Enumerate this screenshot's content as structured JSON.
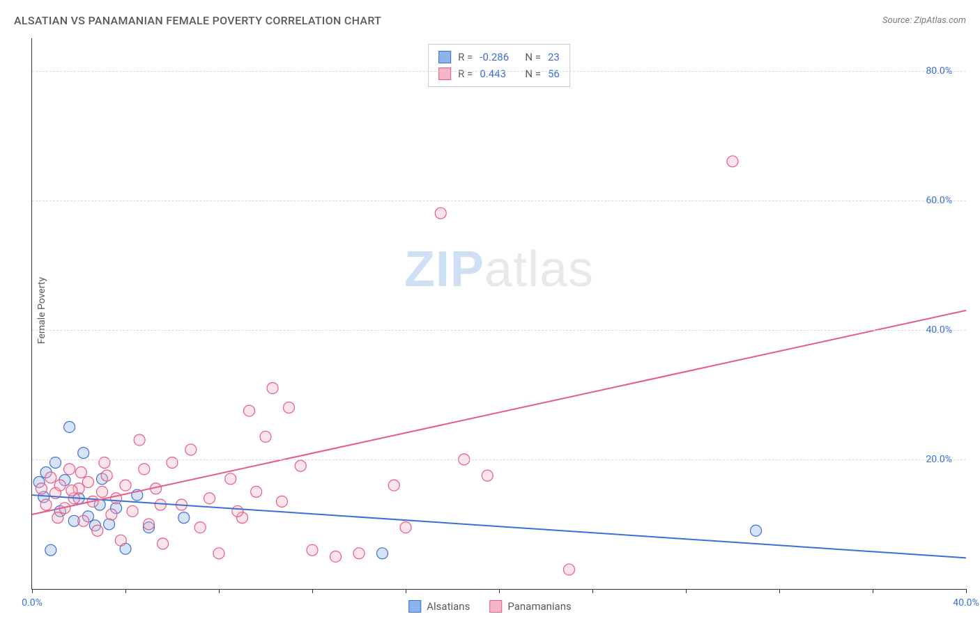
{
  "title": "ALSATIAN VS PANAMANIAN FEMALE POVERTY CORRELATION CHART",
  "source": "Source: ZipAtlas.com",
  "y_axis_label": "Female Poverty",
  "watermark_bold": "ZIP",
  "watermark_rest": "atlas",
  "chart": {
    "type": "scatter",
    "background_color": "#ffffff",
    "grid_color": "#d8d8d8",
    "axis_color": "#333333",
    "label_color": "#5a5a5a",
    "tick_color": "#3b6fd6",
    "title_fontsize": 16,
    "label_fontsize": 14,
    "xlim": [
      0,
      40
    ],
    "ylim": [
      0,
      85
    ],
    "x_ticks": [
      0,
      4,
      8,
      12,
      16,
      20,
      24,
      28,
      32,
      36,
      40
    ],
    "x_tick_labels": {
      "0": "0.0%",
      "40": "40.0%"
    },
    "y_ticks": [
      20,
      40,
      60,
      80
    ],
    "y_tick_labels": {
      "20": "20.0%",
      "40": "40.0%",
      "60": "60.0%",
      "80": "80.0%"
    },
    "marker_radius": 8,
    "marker_fill_opacity": 0.35,
    "marker_stroke_width": 1.2,
    "line_width": 2,
    "series": [
      {
        "name": "Alsatians",
        "color_fill": "#8cb3ec",
        "color_stroke": "#3b6fd6",
        "R": "-0.286",
        "N": "23",
        "trend": {
          "x1": 0,
          "y1": 14.5,
          "x2": 40,
          "y2": 4.8
        },
        "points": [
          [
            0.3,
            16.5
          ],
          [
            0.5,
            14.2
          ],
          [
            0.6,
            18.0
          ],
          [
            0.8,
            6.0
          ],
          [
            1.0,
            19.5
          ],
          [
            1.2,
            12.0
          ],
          [
            1.4,
            16.8
          ],
          [
            1.6,
            25.0
          ],
          [
            1.8,
            10.5
          ],
          [
            2.0,
            14.0
          ],
          [
            2.2,
            21.0
          ],
          [
            2.4,
            11.2
          ],
          [
            2.7,
            9.8
          ],
          [
            3.0,
            17.0
          ],
          [
            3.3,
            10.0
          ],
          [
            3.6,
            12.5
          ],
          [
            4.0,
            6.2
          ],
          [
            4.5,
            14.5
          ],
          [
            5.0,
            9.5
          ],
          [
            6.5,
            11.0
          ],
          [
            15.0,
            5.5
          ],
          [
            31.0,
            9.0
          ],
          [
            2.9,
            13.0
          ]
        ]
      },
      {
        "name": "Panamanians",
        "color_fill": "#f6b4c4",
        "color_stroke": "#e85a86",
        "R": "0.443",
        "N": "56",
        "trend": {
          "x1": 0,
          "y1": 11.5,
          "x2": 40,
          "y2": 43.0
        },
        "points": [
          [
            0.4,
            15.5
          ],
          [
            0.6,
            13.0
          ],
          [
            0.8,
            17.2
          ],
          [
            1.0,
            14.8
          ],
          [
            1.2,
            16.0
          ],
          [
            1.4,
            12.5
          ],
          [
            1.6,
            18.5
          ],
          [
            1.8,
            14.0
          ],
          [
            2.0,
            15.5
          ],
          [
            2.2,
            10.5
          ],
          [
            2.4,
            16.5
          ],
          [
            2.6,
            13.5
          ],
          [
            2.8,
            9.0
          ],
          [
            3.0,
            15.0
          ],
          [
            3.2,
            17.5
          ],
          [
            3.4,
            11.5
          ],
          [
            3.6,
            14.0
          ],
          [
            3.8,
            7.5
          ],
          [
            4.0,
            16.0
          ],
          [
            4.3,
            12.0
          ],
          [
            4.6,
            23.0
          ],
          [
            5.0,
            10.0
          ],
          [
            5.3,
            15.5
          ],
          [
            5.6,
            7.0
          ],
          [
            6.0,
            19.5
          ],
          [
            6.4,
            13.0
          ],
          [
            6.8,
            21.5
          ],
          [
            7.2,
            9.5
          ],
          [
            7.6,
            14.0
          ],
          [
            8.0,
            5.5
          ],
          [
            8.5,
            17.0
          ],
          [
            9.0,
            11.0
          ],
          [
            9.3,
            27.5
          ],
          [
            9.6,
            15.0
          ],
          [
            10.0,
            23.5
          ],
          [
            10.3,
            31.0
          ],
          [
            10.7,
            13.5
          ],
          [
            11.0,
            28.0
          ],
          [
            11.5,
            19.0
          ],
          [
            12.0,
            6.0
          ],
          [
            13.0,
            5.0
          ],
          [
            14.0,
            5.5
          ],
          [
            15.5,
            16.0
          ],
          [
            16.0,
            9.5
          ],
          [
            17.5,
            58.0
          ],
          [
            18.5,
            20.0
          ],
          [
            19.5,
            17.5
          ],
          [
            23.0,
            3.0
          ],
          [
            30.0,
            66.0
          ],
          [
            1.1,
            11.0
          ],
          [
            1.7,
            15.2
          ],
          [
            2.1,
            18.0
          ],
          [
            3.1,
            19.5
          ],
          [
            4.8,
            18.5
          ],
          [
            5.5,
            13.0
          ],
          [
            8.8,
            12.0
          ]
        ]
      }
    ]
  },
  "stats_labels": {
    "R": "R",
    "N": "N",
    "eq": "="
  },
  "legend": {
    "alsatians": "Alsatians",
    "panamanians": "Panamanians"
  }
}
